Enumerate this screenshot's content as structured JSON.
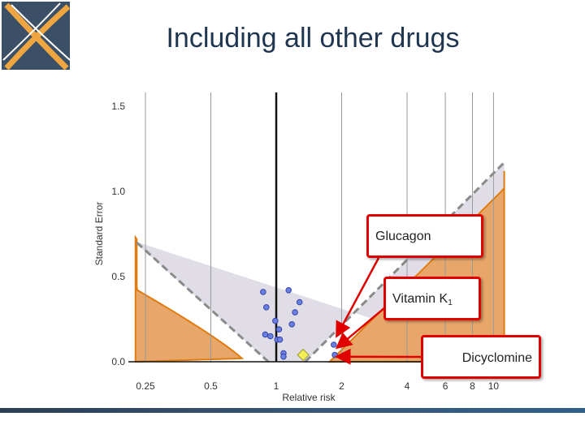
{
  "slide": {
    "title": "Including all other drugs",
    "logo_colors": {
      "background": "#3b5066",
      "x_stroke": "#f0a640",
      "x_stroke_light": "#ffffff"
    }
  },
  "chart_data": {
    "type": "scatter",
    "title": "",
    "xlabel": "Relative risk",
    "ylabel": "Standard Error",
    "x_scale": "log",
    "xlim": [
      0.2,
      11.5
    ],
    "ylim": [
      0,
      1.6
    ],
    "x_ticks": [
      0.25,
      0.5,
      1,
      2,
      4,
      6,
      8,
      10
    ],
    "x_tick_labels": [
      "0.25",
      "0.5",
      "1",
      "2",
      "4",
      "6",
      "8",
      "10"
    ],
    "y_ticks": [
      0.0,
      0.5,
      1.0,
      1.5
    ],
    "y_tick_labels": [
      "0.0",
      "0.5",
      "1.0",
      "1.5"
    ],
    "grid": "vertical",
    "colors": {
      "shade": "#e8a76a",
      "shade_edge": "#e07b10",
      "funnel": "#ddd9e4",
      "dashed": "#8a8a8a",
      "point": "#6a7fe0",
      "point_edge": "#3446a8",
      "diamond": "#f2ef55",
      "diamond_edge": "#999933"
    },
    "signal_boundary": {
      "rr0": 1.76,
      "slope": 3.5
    },
    "expected_boundary": {
      "rr0": 1.4,
      "slope": 3.45
    },
    "points": [
      {
        "x": 0.87,
        "y": 0.41
      },
      {
        "x": 0.9,
        "y": 0.32
      },
      {
        "x": 1.14,
        "y": 0.42
      },
      {
        "x": 1.28,
        "y": 0.35
      },
      {
        "x": 1.22,
        "y": 0.29
      },
      {
        "x": 0.99,
        "y": 0.24
      },
      {
        "x": 1.18,
        "y": 0.22
      },
      {
        "x": 1.03,
        "y": 0.19
      },
      {
        "x": 0.89,
        "y": 0.16
      },
      {
        "x": 0.94,
        "y": 0.15
      },
      {
        "x": 1.01,
        "y": 0.13
      },
      {
        "x": 1.04,
        "y": 0.13
      },
      {
        "x": 1.08,
        "y": 0.05
      },
      {
        "x": 1.08,
        "y": 0.03
      },
      {
        "x": 1.84,
        "y": 0.1
      },
      {
        "x": 1.86,
        "y": 0.04
      }
    ],
    "pooled_estimate": {
      "x": 1.33,
      "y": 0.04
    },
    "annotations": [
      {
        "label": "Glucagon",
        "sub": "",
        "target": {
          "x": 1.85,
          "y": 0.16
        }
      },
      {
        "label": "Vitamin K",
        "sub": "1",
        "target": {
          "x": 1.87,
          "y": 0.09
        }
      },
      {
        "label": "Dicyclomine",
        "sub": "",
        "target": {
          "x": 1.87,
          "y": 0.03
        }
      }
    ]
  }
}
